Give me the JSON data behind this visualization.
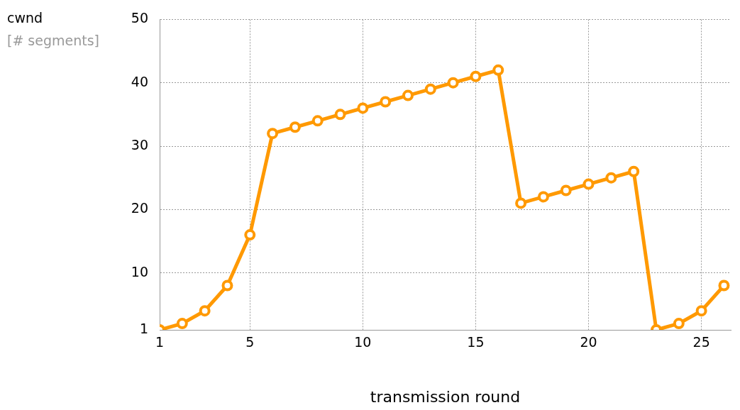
{
  "chart_data": {
    "type": "line",
    "xlabel": "transmission round",
    "annotations": [
      "cwnd",
      "[# segments]"
    ],
    "x": [
      1,
      2,
      3,
      4,
      5,
      6,
      7,
      8,
      9,
      10,
      11,
      12,
      13,
      14,
      15,
      16,
      17,
      18,
      19,
      20,
      21,
      22,
      23,
      24,
      25,
      26
    ],
    "series": [
      {
        "color": "#ff9900",
        "values": [
          1,
          2,
          4,
          8,
          16,
          32,
          33,
          34,
          35,
          36,
          37,
          38,
          39,
          40,
          41,
          42,
          21,
          22,
          23,
          24,
          25,
          26,
          1,
          2,
          4,
          8
        ]
      }
    ],
    "xlim": [
      1,
      26.3
    ],
    "xticks": [
      1,
      5,
      10,
      15,
      20,
      25
    ],
    "ylim": [
      1,
      50
    ],
    "yticks": [
      1,
      10,
      20,
      30,
      40,
      50
    ],
    "grid": true,
    "legend": false,
    "marker": "circle",
    "line_style": "solid"
  }
}
